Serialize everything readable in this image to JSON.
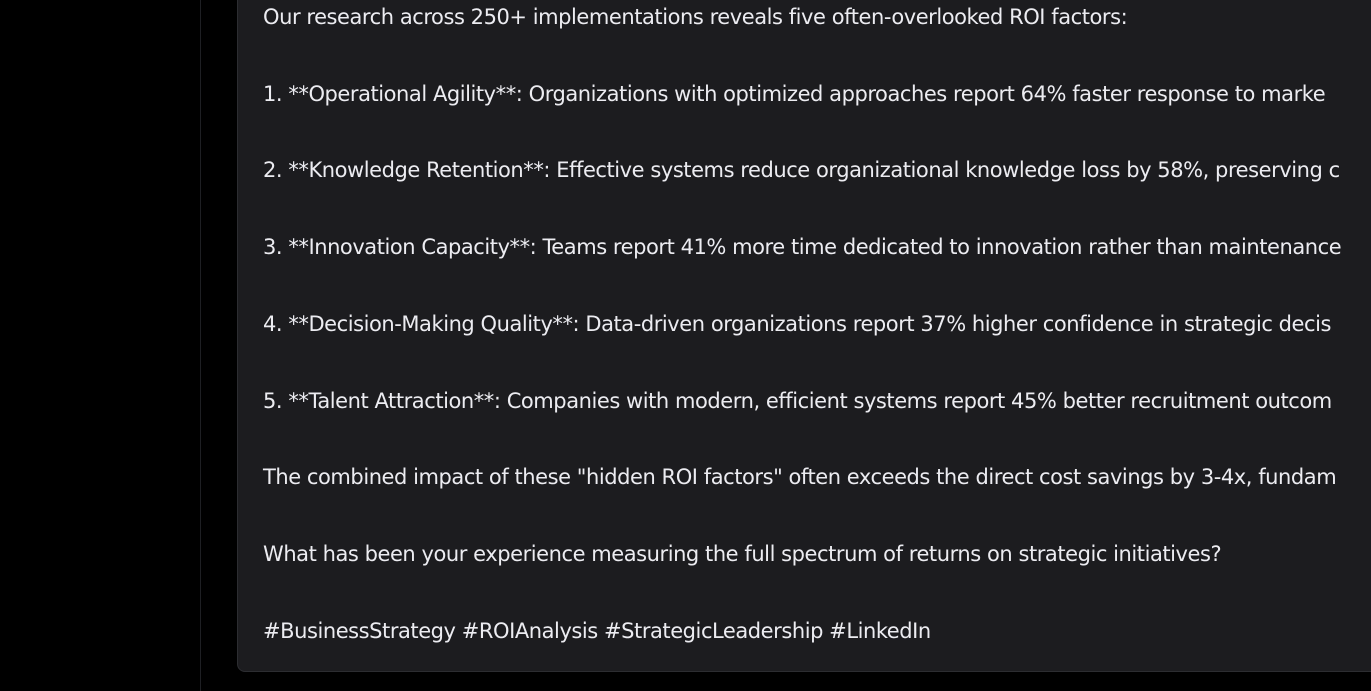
{
  "post": {
    "intro": "Our research across 250+ implementations reveals five often-overlooked ROI factors:",
    "items": [
      "1. **Operational Agility**: Organizations with optimized approaches report 64% faster response to marke",
      "2. **Knowledge Retention**: Effective systems reduce organizational knowledge loss by 58%, preserving c",
      "3. **Innovation Capacity**: Teams report 41% more time dedicated to innovation rather than maintenance",
      "4. **Decision-Making Quality**: Data-driven organizations report 37% higher confidence in strategic decis",
      "5. **Talent Attraction**: Companies with modern, efficient systems report 45% better recruitment outcom"
    ],
    "summary": "The combined impact of these \"hidden ROI factors\" often exceeds the direct cost savings by 3-4x, fundam",
    "question": "What has been your experience measuring the full spectrum of returns on strategic initiatives?",
    "hashtags": "#BusinessStrategy #ROIAnalysis #StrategicLeadership #LinkedIn"
  },
  "colors": {
    "background": "#000000",
    "card": "#1c1c1f",
    "card_border": "#2c2d31",
    "text": "#ececf1"
  }
}
